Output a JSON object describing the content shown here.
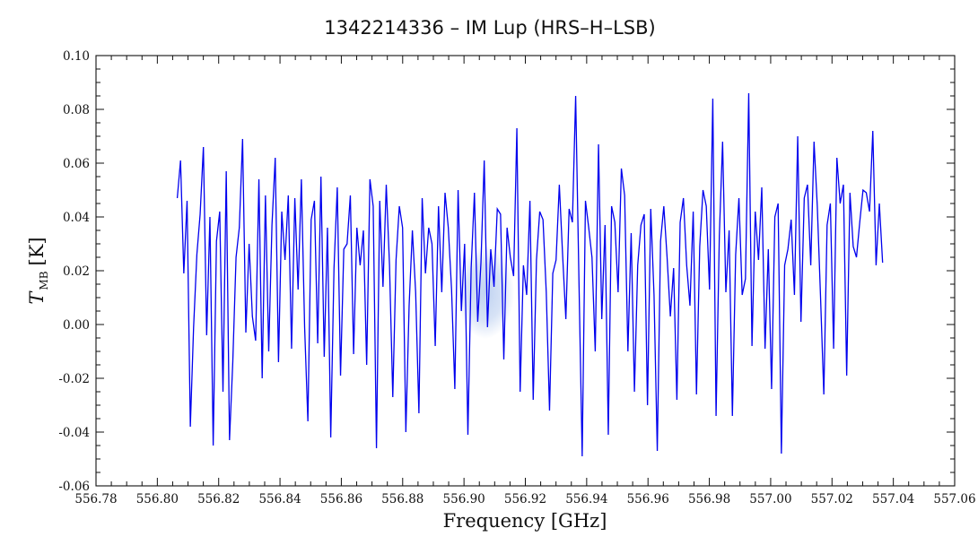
{
  "chart_data": {
    "type": "line",
    "title": "1342214336 – IM Lup (HRS–H–LSB)",
    "xlabel": "Frequency [GHz]",
    "ylabel": {
      "symbol": "T",
      "subscript": "MB",
      "unit": "[K]"
    },
    "xlim": [
      556.78,
      557.06
    ],
    "ylim": [
      -0.06,
      0.1
    ],
    "x_ticks": [
      "556.78",
      "556.80",
      "556.82",
      "556.84",
      "556.86",
      "556.88",
      "556.90",
      "556.92",
      "556.94",
      "556.96",
      "556.98",
      "557.00",
      "557.02",
      "557.04",
      "557.06"
    ],
    "y_ticks": [
      "-0.06",
      "-0.04",
      "-0.02",
      "0.00",
      "0.02",
      "0.04",
      "0.06",
      "0.08",
      "0.10"
    ],
    "series": [
      {
        "color": "#0000ee",
        "x_start": 556.8065,
        "x_end": 557.0365,
        "values": [
          0.047,
          0.061,
          0.019,
          0.046,
          -0.038,
          -0.001,
          0.026,
          0.041,
          0.066,
          -0.004,
          0.04,
          -0.045,
          0.031,
          0.042,
          -0.025,
          0.057,
          -0.043,
          -0.014,
          0.025,
          0.036,
          0.069,
          -0.003,
          0.03,
          0.003,
          -0.006,
          0.054,
          -0.02,
          0.048,
          -0.01,
          0.037,
          0.062,
          -0.014,
          0.042,
          0.024,
          0.048,
          -0.009,
          0.047,
          0.013,
          0.054,
          -0.001,
          -0.036,
          0.039,
          0.046,
          -0.007,
          0.055,
          -0.012,
          0.036,
          -0.042,
          0.021,
          0.051,
          -0.019,
          0.028,
          0.03,
          0.048,
          -0.011,
          0.036,
          0.022,
          0.035,
          -0.015,
          0.054,
          0.044,
          -0.046,
          0.046,
          0.014,
          0.052,
          0.022,
          -0.027,
          0.024,
          0.044,
          0.036,
          -0.04,
          0.007,
          0.035,
          0.012,
          -0.033,
          0.047,
          0.019,
          0.036,
          0.03,
          -0.008,
          0.044,
          0.012,
          0.049,
          0.036,
          0.013,
          -0.024,
          0.05,
          0.005,
          0.03,
          -0.041,
          0.021,
          0.049,
          0.001,
          0.023,
          0.061,
          -0.001,
          0.028,
          0.014,
          0.043,
          0.041,
          -0.013,
          0.036,
          0.025,
          0.018,
          0.073,
          -0.025,
          0.022,
          0.011,
          0.046,
          -0.028,
          0.024,
          0.042,
          0.039,
          0.012,
          -0.032,
          0.019,
          0.024,
          0.052,
          0.026,
          0.002,
          0.043,
          0.038,
          0.085,
          0.017,
          -0.049,
          0.046,
          0.036,
          0.025,
          -0.01,
          0.067,
          0.002,
          0.037,
          -0.041,
          0.044,
          0.038,
          0.012,
          0.058,
          0.048,
          -0.01,
          0.034,
          -0.025,
          0.022,
          0.037,
          0.041,
          -0.03,
          0.043,
          0.011,
          -0.047,
          0.031,
          0.044,
          0.025,
          0.003,
          0.021,
          -0.028,
          0.038,
          0.047,
          0.022,
          0.007,
          0.042,
          -0.026,
          0.029,
          0.05,
          0.044,
          0.013,
          0.084,
          -0.034,
          0.033,
          0.068,
          0.012,
          0.035,
          -0.034,
          0.026,
          0.047,
          0.011,
          0.017,
          0.086,
          -0.008,
          0.042,
          0.024,
          0.051,
          -0.009,
          0.028,
          -0.024,
          0.04,
          0.045,
          -0.048,
          0.022,
          0.028,
          0.039,
          0.011,
          0.07,
          0.001,
          0.047,
          0.052,
          0.022,
          0.068,
          0.044,
          0.01,
          -0.026,
          0.037,
          0.045,
          -0.009,
          0.062,
          0.045,
          0.052,
          -0.019,
          0.049,
          0.029,
          0.025,
          0.038,
          0.05,
          0.049,
          0.042,
          0.072,
          0.022,
          0.045,
          0.023
        ]
      }
    ],
    "highlight": {
      "x": 556.907,
      "y": 0.012
    }
  }
}
